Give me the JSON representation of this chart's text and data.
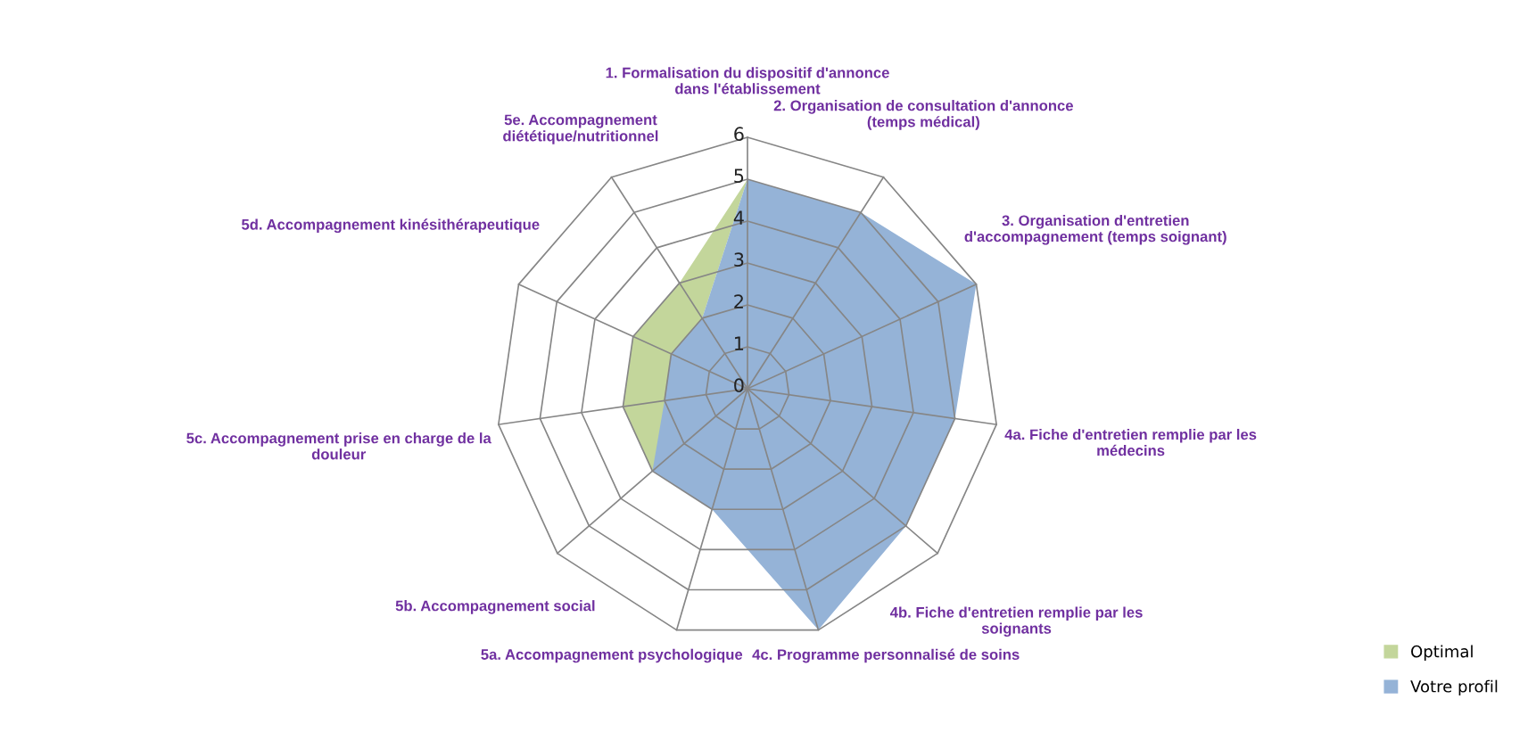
{
  "chart_data": {
    "type": "radar",
    "categories": [
      "1. Formalisation du dispositif d'annonce\ndans l'établissement",
      "2. Organisation de consultation d'annonce\n(temps médical)",
      "3. Organisation d'entretien\nd'accompagnement (temps soignant)",
      "4a. Fiche d'entretien remplie par les\nmédecins",
      "4b. Fiche d'entretien remplie par les\nsoignants",
      "4c. Programme personnalisé de soins",
      "5a. Accompagnement psychologique",
      "5b. Accompagnement social",
      "5c. Accompagnement prise en charge de la\ndouleur",
      "5d. Accompagnement kinésithérapeutique",
      "5e. Accompagnement\ndiététique/nutritionnel"
    ],
    "series": [
      {
        "name": "Optimal",
        "color": "#c3d69b",
        "values": [
          5,
          null,
          null,
          null,
          null,
          null,
          null,
          3,
          3,
          3,
          3
        ]
      },
      {
        "name": "Votre profil",
        "color": "#95b3d7",
        "values": [
          5,
          5,
          6,
          5,
          5,
          6,
          3,
          3,
          2,
          2,
          2
        ]
      }
    ],
    "ylim": [
      0,
      6
    ],
    "yticks": [
      0,
      1,
      2,
      3,
      4,
      5,
      6
    ],
    "grid": true,
    "legend": "bottom right"
  }
}
